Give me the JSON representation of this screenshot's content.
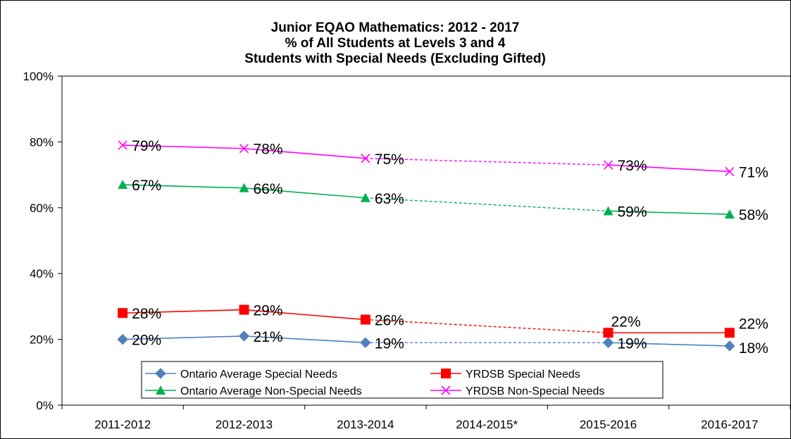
{
  "chart_data": {
    "type": "line",
    "title": [
      "Junior EQAO Mathematics: 2012 - 2017",
      "% of All Students at Levels 3 and 4",
      "Students with Special Needs (Excluding Gifted)"
    ],
    "categories": [
      "2011-2012",
      "2012-2013",
      "2013-2014",
      "2014-2015*",
      "2015-2016",
      "2016-2017"
    ],
    "ylim": [
      0,
      100
    ],
    "yticks": [
      "0%",
      "20%",
      "40%",
      "60%",
      "80%",
      "100%"
    ],
    "ytick_values": [
      0,
      20,
      40,
      60,
      80,
      100
    ],
    "missing_category_index": 3,
    "missing_segment_style": "dashed",
    "grid": false,
    "legend_position": "bottom",
    "series": [
      {
        "name": "Ontario Average Special Needs",
        "values": [
          20,
          21,
          19,
          null,
          19,
          18
        ],
        "labels": [
          "20%",
          "21%",
          "19%",
          "",
          "19%",
          "18%"
        ],
        "color": "#4F81BD",
        "marker": "diamond"
      },
      {
        "name": "YRDSB Special Needs",
        "values": [
          28,
          29,
          26,
          null,
          22,
          22
        ],
        "labels": [
          "28%",
          "29%",
          "26%",
          "",
          "22%",
          "22%"
        ],
        "color": "#FF0000",
        "marker": "square"
      },
      {
        "name": "Ontario Average Non-Special Needs",
        "values": [
          67,
          66,
          63,
          null,
          59,
          58
        ],
        "labels": [
          "67%",
          "66%",
          "63%",
          "",
          "59%",
          "58%"
        ],
        "color": "#00B050",
        "marker": "triangle"
      },
      {
        "name": "YRDSB Non-Special Needs",
        "values": [
          79,
          78,
          75,
          null,
          73,
          71
        ],
        "labels": [
          "79%",
          "78%",
          "75%",
          "",
          "73%",
          "71%"
        ],
        "color": "#FF00FF",
        "marker": "x"
      }
    ]
  }
}
